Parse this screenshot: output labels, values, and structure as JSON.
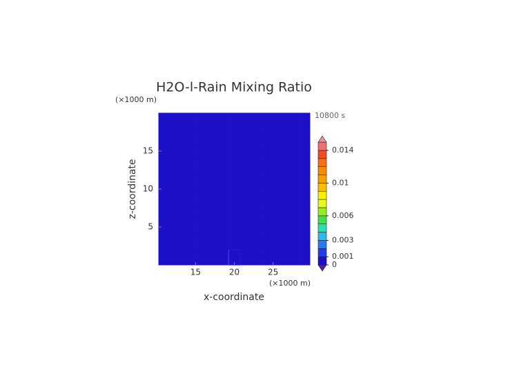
{
  "chart_data": {
    "type": "heatmap",
    "title": "H2O-l-Rain Mixing Ratio",
    "xlabel": "x-coordinate",
    "ylabel": "z-coordinate",
    "x_unit": "(×1000 m)",
    "y_unit": "(×1000 m)",
    "time_label": "10800 s",
    "xlim": [
      10.25,
      29.75
    ],
    "ylim": [
      0,
      20
    ],
    "xticks": [
      15,
      20,
      25
    ],
    "yticks": [
      5,
      10,
      15
    ],
    "x": [
      11,
      12.5,
      14,
      15.5,
      17,
      18.5,
      20,
      21.5,
      23,
      24.5,
      26,
      27.5,
      29
    ],
    "y": [
      1,
      3,
      5,
      7,
      9,
      11,
      13,
      15,
      17,
      19
    ],
    "z": [
      [
        0,
        0,
        0,
        0,
        0,
        0,
        0.0002,
        0,
        0,
        0,
        0,
        0,
        0
      ],
      [
        0,
        0,
        0,
        0,
        0,
        0,
        0,
        0,
        0,
        0,
        0,
        0,
        0
      ],
      [
        0,
        0,
        0,
        0,
        0,
        0,
        0,
        0,
        0,
        0,
        0,
        0,
        0
      ],
      [
        0,
        0,
        0,
        0,
        0,
        0,
        0,
        0,
        0,
        0,
        0,
        0,
        0
      ],
      [
        0,
        0,
        0,
        0,
        0,
        0,
        0,
        0,
        0,
        0,
        0,
        0,
        0
      ],
      [
        0,
        0,
        0,
        0,
        0,
        0,
        0,
        0,
        0,
        0,
        0,
        0,
        0
      ],
      [
        0,
        0,
        0,
        0,
        0,
        0,
        0,
        0,
        0,
        0,
        0,
        0,
        0
      ],
      [
        0,
        0,
        0,
        0,
        0,
        0,
        0,
        0,
        0,
        0,
        0,
        0,
        0
      ],
      [
        0,
        0,
        0,
        0,
        0,
        0,
        0,
        0,
        0,
        0,
        0,
        0,
        0
      ],
      [
        0,
        0,
        0,
        0,
        0,
        0,
        0,
        0,
        0,
        0,
        0,
        0,
        0
      ]
    ],
    "colorbar": {
      "levels": [
        0,
        0.001,
        0.002,
        0.003,
        0.004,
        0.005,
        0.006,
        0.007,
        0.008,
        0.009,
        0.01,
        0.011,
        0.012,
        0.013,
        0.014,
        0.015
      ],
      "colors": [
        "#1c10c8",
        "#1f3cf0",
        "#2a78f8",
        "#30b8f0",
        "#28e0b0",
        "#40e050",
        "#90f020",
        "#e8f818",
        "#f8f000",
        "#f8c000",
        "#f8a000",
        "#f88c00",
        "#f86e10",
        "#f84a20",
        "#f07070"
      ],
      "under_color": "#5020a0",
      "over_color": "#f09090",
      "ticks": [
        0,
        0.001,
        0.003,
        0.006,
        0.01,
        0.014
      ]
    }
  }
}
